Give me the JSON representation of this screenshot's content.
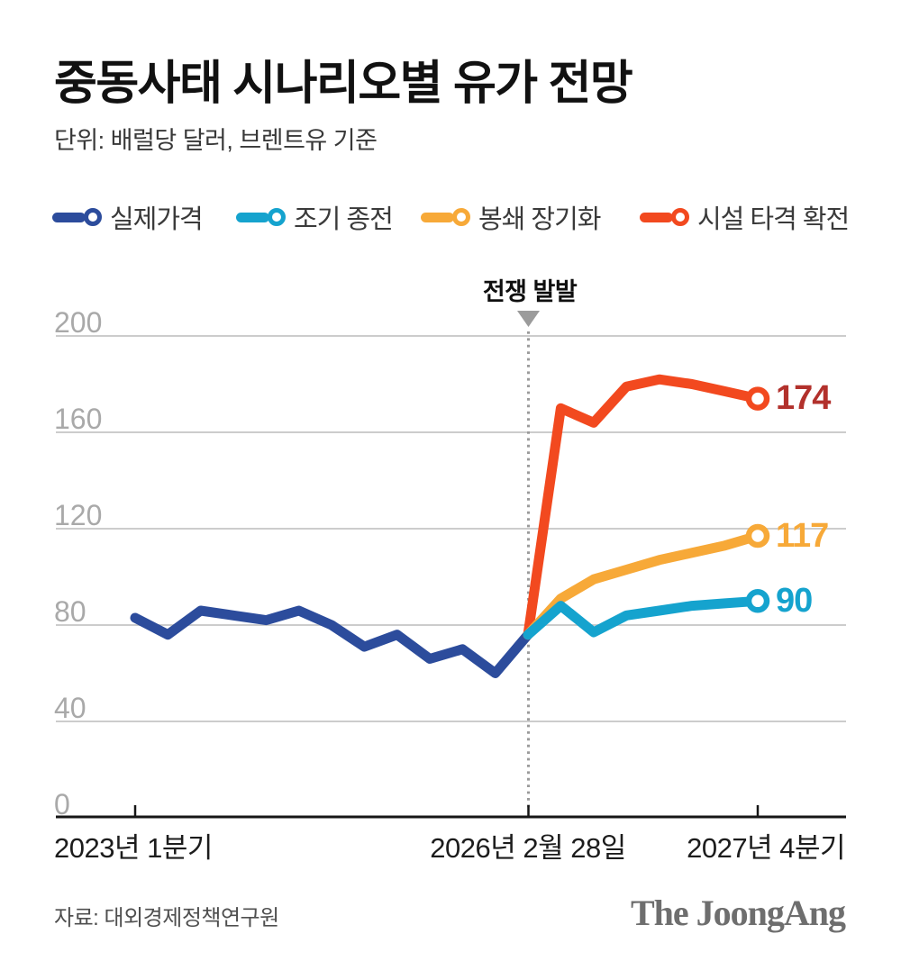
{
  "title": "중동사태 시나리오별 유가 전망",
  "subtitle": "단위: 배럴당 달러, 브렌트유 기준",
  "colors": {
    "background": "#ffffff",
    "grid": "#cccccc",
    "axis": "#161616",
    "ytick_label": "#a9a9a9",
    "event_marker": "#9b9b9b"
  },
  "legend": [
    {
      "label": "실제가격",
      "color": "#2c4c9c"
    },
    {
      "label": "조기 종전",
      "color": "#15a3ce"
    },
    {
      "label": "봉쇄 장기화",
      "color": "#f7a938"
    },
    {
      "label": "시설 타격 확전",
      "color": "#f2491f"
    }
  ],
  "event": {
    "label": "전쟁 발발",
    "x": "2026년 2월 28일"
  },
  "footer": {
    "source": "자료: 대외경제정책연구원",
    "logo": "The JoongAng"
  },
  "chart_data": {
    "type": "line",
    "title": "중동사태 시나리오별 유가 전망",
    "unit_note": "단위: 배럴당 달러, 브렌트유 기준",
    "ylim": [
      0,
      200
    ],
    "yticks": [
      0,
      40,
      80,
      120,
      160,
      200
    ],
    "xticks": [
      "2023년 1분기",
      "2026년 2월 28일",
      "2027년 4분기"
    ],
    "x_history": [
      "2023 Q1",
      "2023 Q2",
      "2023 Q3",
      "2023 Q4",
      "2024 Q1",
      "2024 Q2",
      "2024 Q3",
      "2024 Q4",
      "2025 Q1",
      "2025 Q2",
      "2025 Q3",
      "2025 Q4",
      "2026-02-28"
    ],
    "x_forecast": [
      "2026-02-28",
      "2026 Q2",
      "2026 Q3",
      "2026 Q4",
      "2027 Q1",
      "2027 Q2",
      "2027 Q3",
      "2027 Q4"
    ],
    "grid": "horizontal",
    "legend_position": "top",
    "annotation": {
      "label": "전쟁 발발",
      "at_x": "2026-02-28"
    },
    "series": [
      {
        "name": "실제가격",
        "segment": "history",
        "color": "#2c4c9c",
        "values": [
          83,
          76,
          86,
          84,
          82,
          86,
          80,
          71,
          76,
          66,
          70,
          60,
          76
        ]
      },
      {
        "name": "조기 종전",
        "segment": "forecast",
        "color": "#15a3ce",
        "values": [
          76,
          88,
          77,
          84,
          86,
          88,
          89,
          90
        ],
        "end_label": "90",
        "end_label_color": "#15a3ce"
      },
      {
        "name": "봉쇄 장기화",
        "segment": "forecast",
        "color": "#f7a938",
        "values": [
          76,
          91,
          99,
          103,
          107,
          110,
          113,
          117
        ],
        "end_label": "117",
        "end_label_color": "#f7a938"
      },
      {
        "name": "시설 타격 확전",
        "segment": "forecast",
        "color": "#f2491f",
        "values": [
          76,
          170,
          164,
          179,
          182,
          180,
          177,
          174
        ],
        "end_label": "174",
        "end_label_color": "#b2312c"
      }
    ]
  }
}
